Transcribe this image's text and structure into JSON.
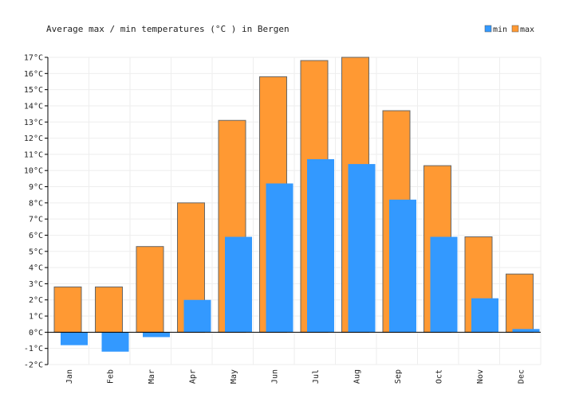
{
  "chart_data": {
    "type": "bar",
    "title": "Average max / min temperatures (°C ) in Bergen",
    "xlabel": "",
    "ylabel": "",
    "categories": [
      "Jan",
      "Feb",
      "Mar",
      "Apr",
      "May",
      "Jun",
      "Jul",
      "Aug",
      "Sep",
      "Oct",
      "Nov",
      "Dec"
    ],
    "series": [
      {
        "name": "min",
        "color": "#3399ff",
        "values": [
          -0.8,
          -1.2,
          -0.3,
          2.0,
          5.9,
          9.2,
          10.7,
          10.4,
          8.2,
          5.9,
          2.1,
          0.2
        ]
      },
      {
        "name": "max",
        "color": "#ff9933",
        "values": [
          2.8,
          2.8,
          5.3,
          8.0,
          13.1,
          15.8,
          16.8,
          17.0,
          13.7,
          10.3,
          5.9,
          3.6
        ]
      }
    ],
    "ylim": [
      -2,
      17
    ],
    "yticks": [
      "-2°C",
      "-1°C",
      "0°C",
      "1°C",
      "2°C",
      "3°C",
      "4°C",
      "5°C",
      "6°C",
      "7°C",
      "8°C",
      "9°C",
      "10°C",
      "11°C",
      "12°C",
      "13°C",
      "14°C",
      "15°C",
      "16°C",
      "17°C"
    ],
    "grid": true,
    "legend_position": "top-right"
  }
}
